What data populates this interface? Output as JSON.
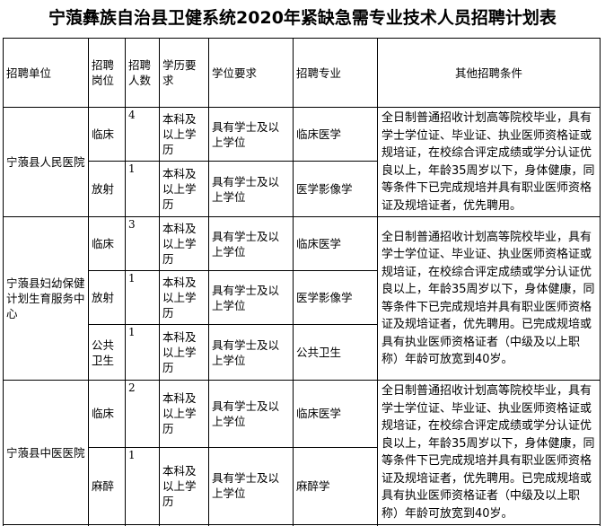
{
  "title": "宁蒗彝族自治县卫健系统2020年紧缺急需专业技术人员招聘计划表",
  "colors": {
    "text": "#000000",
    "border": "#000000",
    "background": "#ffffff"
  },
  "table": {
    "headers": [
      "招聘单位",
      "招聘岗位",
      "招聘人数",
      "学历要求",
      "学位要求",
      "招聘专业",
      "其他招聘条件"
    ],
    "groups": [
      {
        "unit": "宁蒗县人民医院",
        "conditions": "全日制普通招收计划高等院校毕业，具有学士学位证、毕业证、执业医师资格证或规培证，在校综合评定成绩或学分认证优良以上，年龄35周岁以下，身体健康，同等条件下已完成规培并具有职业医师资格证及规培证者，优先聘用。",
        "rows": [
          {
            "post": "临床",
            "count": "4",
            "degree": "本科及以上学历",
            "diploma": "具有学士及以上学位",
            "major": "临床医学"
          },
          {
            "post": "放射",
            "count": "1",
            "degree": "本科及以上学历",
            "diploma": "具有学士及以上学位",
            "major": "医学影像学"
          }
        ]
      },
      {
        "unit": "宁蒗县妇幼保健计划生育服务中心",
        "conditions": "全日制普通招收计划高等院校毕业，具有学士学位证、毕业证、执业医师资格证或规培证，在校综合评定成绩或学分认证优良以上，年龄35周岁以下，身体健康，同等条件下已完成规培并具有职业医师资格证及规培证者，优先聘用。已完成规培或具有执业医师资格证者（中级及以上职称）年龄可放宽到40岁。",
        "rows": [
          {
            "post": "临床",
            "count": "3",
            "degree": "本科及以上学历",
            "diploma": "具有学士及以上学位",
            "major": "临床医学"
          },
          {
            "post": "放射",
            "count": "1",
            "degree": "本科及以上学历",
            "diploma": "具有学士及以上学位",
            "major": "医学影像学"
          },
          {
            "post": "公共卫生",
            "count": "1",
            "degree": "本科及以上学历",
            "diploma": "具有学士及以上学位",
            "major": "公共卫生"
          }
        ]
      },
      {
        "unit": "宁蒗县中医医院",
        "conditions": "全日制普通招收计划高等院校毕业，具有学士学位证、毕业证、执业医师资格证或规培证，在校综合评定成绩或学分认证优良以上，年龄35周岁以下，身体健康，同等条件下已完成规培并具有职业医师资格证及规培证者，优先聘用。已完成规培或具有执业医师资格证者（中级及以上职称）年龄可放宽到40岁。",
        "rows": [
          {
            "post": "临床",
            "count": "2",
            "degree": "本科及以上学历",
            "diploma": "具有学士及以上学位",
            "major": "临床医学"
          },
          {
            "post": "麻醉",
            "count": "1",
            "degree": "本科及以上学历",
            "diploma": "具有学士及以上学位",
            "major": "麻醉学"
          }
        ]
      }
    ]
  }
}
